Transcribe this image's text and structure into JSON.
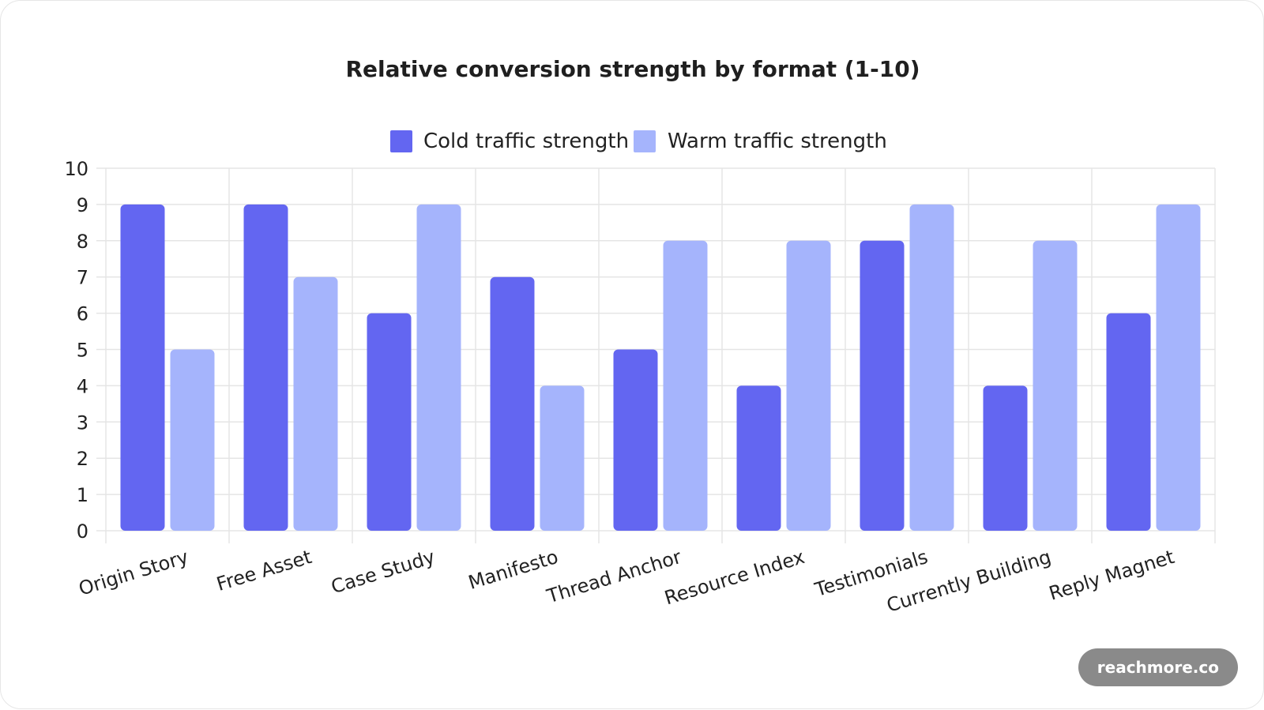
{
  "chart_data": {
    "type": "bar",
    "title": "Relative conversion strength by format (1-10)",
    "xlabel": "",
    "ylabel": "",
    "ylim": [
      0,
      10
    ],
    "yticks": [
      "0",
      "1",
      "2",
      "3",
      "4",
      "5",
      "6",
      "7",
      "8",
      "9",
      "10"
    ],
    "grid": true,
    "legend_position": "top-center",
    "categories": [
      "Origin Story",
      "Free Asset",
      "Case Study",
      "Manifesto",
      "Thread Anchor",
      "Resource Index",
      "Testimonials",
      "Currently Building",
      "Reply Magnet"
    ],
    "series": [
      {
        "name": "Cold traffic strength",
        "color": "#6366f1",
        "values": [
          9,
          9,
          6,
          7,
          5,
          4,
          8,
          4,
          6
        ]
      },
      {
        "name": "Warm traffic strength",
        "color": "#a5b4fc",
        "values": [
          5,
          7,
          9,
          4,
          8,
          8,
          9,
          8,
          9
        ]
      }
    ]
  },
  "watermark": "reachmore.co"
}
